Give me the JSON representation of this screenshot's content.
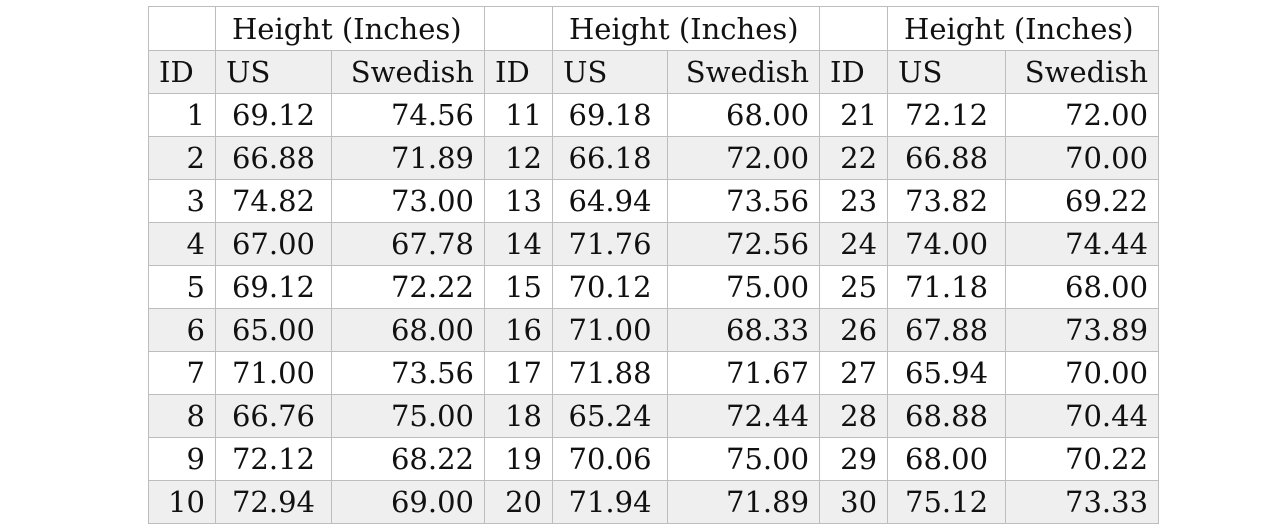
{
  "table": {
    "group_header": "Height (Inches)",
    "columns": {
      "id": "ID",
      "us": "US",
      "swedish": "Swedish"
    },
    "groups": [
      {
        "rows": [
          {
            "id": "1",
            "us": "69.12",
            "swedish": "74.56"
          },
          {
            "id": "2",
            "us": "66.88",
            "swedish": "71.89"
          },
          {
            "id": "3",
            "us": "74.82",
            "swedish": "73.00"
          },
          {
            "id": "4",
            "us": "67.00",
            "swedish": "67.78"
          },
          {
            "id": "5",
            "us": "69.12",
            "swedish": "72.22"
          },
          {
            "id": "6",
            "us": "65.00",
            "swedish": "68.00"
          },
          {
            "id": "7",
            "us": "71.00",
            "swedish": "73.56"
          },
          {
            "id": "8",
            "us": "66.76",
            "swedish": "75.00"
          },
          {
            "id": "9",
            "us": "72.12",
            "swedish": "68.22"
          },
          {
            "id": "10",
            "us": "72.94",
            "swedish": "69.00"
          }
        ]
      },
      {
        "rows": [
          {
            "id": "11",
            "us": "69.18",
            "swedish": "68.00"
          },
          {
            "id": "12",
            "us": "66.18",
            "swedish": "72.00"
          },
          {
            "id": "13",
            "us": "64.94",
            "swedish": "73.56"
          },
          {
            "id": "14",
            "us": "71.76",
            "swedish": "72.56"
          },
          {
            "id": "15",
            "us": "70.12",
            "swedish": "75.00"
          },
          {
            "id": "16",
            "us": "71.00",
            "swedish": "68.33"
          },
          {
            "id": "17",
            "us": "71.88",
            "swedish": "71.67"
          },
          {
            "id": "18",
            "us": "65.24",
            "swedish": "72.44"
          },
          {
            "id": "19",
            "us": "70.06",
            "swedish": "75.00"
          },
          {
            "id": "20",
            "us": "71.94",
            "swedish": "71.89"
          }
        ]
      },
      {
        "rows": [
          {
            "id": "21",
            "us": "72.12",
            "swedish": "72.00"
          },
          {
            "id": "22",
            "us": "66.88",
            "swedish": "70.00"
          },
          {
            "id": "23",
            "us": "73.82",
            "swedish": "69.22"
          },
          {
            "id": "24",
            "us": "74.00",
            "swedish": "74.44"
          },
          {
            "id": "25",
            "us": "71.18",
            "swedish": "68.00"
          },
          {
            "id": "26",
            "us": "67.88",
            "swedish": "73.89"
          },
          {
            "id": "27",
            "us": "65.94",
            "swedish": "70.00"
          },
          {
            "id": "28",
            "us": "68.88",
            "swedish": "70.44"
          },
          {
            "id": "29",
            "us": "68.00",
            "swedish": "70.22"
          },
          {
            "id": "30",
            "us": "75.12",
            "swedish": "73.33"
          }
        ]
      }
    ],
    "colors": {
      "shade": "#efefef",
      "border": "#bdbdbd",
      "text": "#111111"
    }
  }
}
